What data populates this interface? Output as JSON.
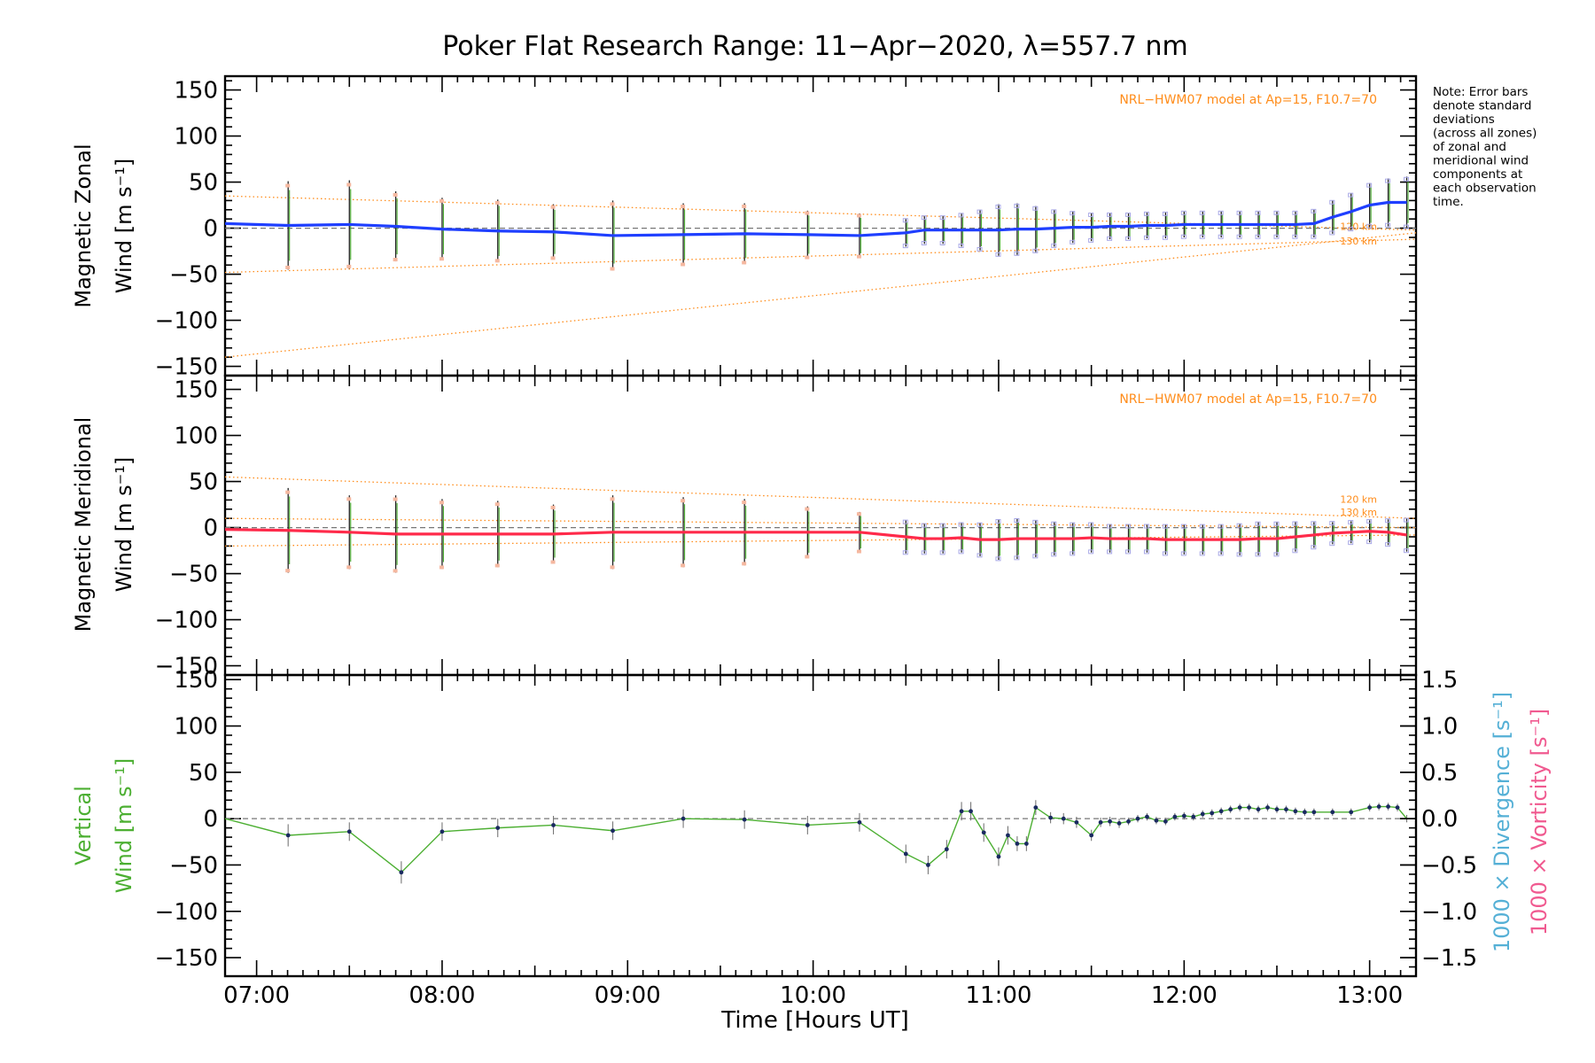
{
  "title": "Poker Flat Research Range: 11−Apr−2020, λ=557.7 nm",
  "note": [
    "Note: Error bars",
    "denote standard",
    "deviations",
    "(across all zones)",
    "of zonal and",
    "meridional wind",
    "components at",
    "each observation",
    "time."
  ],
  "xlabel": "Time [Hours UT]",
  "colors": {
    "zonal": "#1f3fff",
    "meridional": "#ff2a4a",
    "vertical": "#4caf32",
    "model": "#ff8c1a",
    "divergence": "#55b0d6",
    "vorticity": "#f05a90"
  },
  "chart_data": [
    {
      "type": "line",
      "name": "zonal",
      "ylabel_line1": "Magnetic Zonal",
      "ylabel_line2": "Wind [m s⁻¹]",
      "model_label": "NRL−HWM07 model at Ap=15, F10.7=70",
      "alt_labels": [
        "120 km",
        "130 km"
      ],
      "ylim": [
        -160,
        165
      ],
      "yticks": [
        "150",
        "100",
        "50",
        "0",
        "−50",
        "−100",
        "−150"
      ],
      "ytick_values": [
        150,
        100,
        50,
        0,
        -50,
        -100,
        -150
      ],
      "x": [
        6.83,
        7.17,
        7.5,
        7.75,
        8.0,
        8.3,
        8.6,
        8.92,
        9.3,
        9.63,
        9.97,
        10.25,
        10.5,
        10.6,
        10.7,
        10.8,
        10.9,
        11.0,
        11.1,
        11.2,
        11.3,
        11.4,
        11.5,
        11.6,
        11.7,
        11.8,
        11.9,
        12.0,
        12.1,
        12.2,
        12.3,
        12.4,
        12.5,
        12.6,
        12.7,
        12.8,
        12.9,
        13.0,
        13.1,
        13.2
      ],
      "y": [
        5,
        3,
        4,
        2,
        -1,
        -3,
        -4,
        -8,
        -7,
        -6,
        -7,
        -8,
        -5,
        -2,
        -2,
        -2,
        -2,
        -2,
        -1,
        -1,
        0,
        1,
        1,
        2,
        2,
        3,
        3,
        4,
        4,
        4,
        4,
        4,
        4,
        4,
        5,
        12,
        18,
        25,
        28,
        28
      ],
      "err": [
        0,
        48,
        48,
        38,
        34,
        34,
        30,
        38,
        34,
        33,
        26,
        24,
        15,
        15,
        15,
        18,
        22,
        28,
        28,
        25,
        20,
        17,
        15,
        14,
        14,
        14,
        14,
        14,
        14,
        14,
        14,
        14,
        14,
        14,
        15,
        18,
        20,
        24,
        26,
        28
      ],
      "model_curves": [
        {
          "x": [
            6.83,
            13.25
          ],
          "y": [
            -140,
            -5
          ]
        },
        {
          "x": [
            6.83,
            13.25
          ],
          "y": [
            -48,
            -12
          ]
        },
        {
          "x": [
            6.83,
            13.25
          ],
          "y": [
            35,
            -2
          ]
        }
      ]
    },
    {
      "type": "line",
      "name": "meridional",
      "ylabel_line1": "Magnetic Meridional",
      "ylabel_line2": "Wind [m s⁻¹]",
      "model_label": "NRL−HWM07 model at Ap=15, F10.7=70",
      "alt_labels": [
        "120 km",
        "130 km"
      ],
      "ylim": [
        -160,
        165
      ],
      "yticks": [
        "150",
        "100",
        "50",
        "0",
        "−50",
        "−100",
        "−150"
      ],
      "ytick_values": [
        150,
        100,
        50,
        0,
        -50,
        -100,
        -150
      ],
      "x": [
        6.83,
        7.17,
        7.5,
        7.75,
        8.0,
        8.3,
        8.6,
        8.92,
        9.3,
        9.63,
        9.97,
        10.25,
        10.5,
        10.6,
        10.7,
        10.8,
        10.9,
        11.0,
        11.1,
        11.2,
        11.3,
        11.4,
        11.5,
        11.6,
        11.7,
        11.8,
        11.9,
        12.0,
        12.1,
        12.2,
        12.3,
        12.4,
        12.5,
        12.6,
        12.7,
        12.8,
        12.9,
        13.0,
        13.1,
        13.2
      ],
      "y": [
        -2,
        -3,
        -5,
        -7,
        -7,
        -7,
        -7,
        -5,
        -5,
        -5,
        -5,
        -5,
        -10,
        -12,
        -12,
        -11,
        -13,
        -13,
        -12,
        -12,
        -12,
        -12,
        -11,
        -12,
        -12,
        -12,
        -13,
        -13,
        -13,
        -13,
        -13,
        -12,
        -12,
        -10,
        -8,
        -6,
        -5,
        -4,
        -5,
        -8
      ],
      "err": [
        0,
        46,
        40,
        42,
        38,
        36,
        32,
        40,
        38,
        36,
        28,
        22,
        18,
        16,
        16,
        16,
        18,
        22,
        22,
        20,
        18,
        17,
        16,
        15,
        15,
        15,
        16,
        16,
        16,
        16,
        17,
        18,
        18,
        16,
        14,
        12,
        12,
        12,
        14,
        18
      ],
      "model_curves": [
        {
          "x": [
            6.83,
            13.25
          ],
          "y": [
            55,
            10
          ]
        },
        {
          "x": [
            6.83,
            13.25
          ],
          "y": [
            10,
            0
          ]
        },
        {
          "x": [
            6.83,
            13.25
          ],
          "y": [
            -20,
            -8
          ]
        }
      ]
    },
    {
      "type": "line",
      "name": "vertical",
      "ylabel_line1": "Vertical",
      "ylabel_line2": "Wind [m s⁻¹]",
      "ylim": [
        -170,
        155
      ],
      "yticks": [
        "150",
        "100",
        "50",
        "0",
        "−50",
        "−100",
        "−150"
      ],
      "ytick_values": [
        150,
        100,
        50,
        0,
        -50,
        -100,
        -150
      ],
      "right_ylabel_div": "1000 × Divergence [s⁻¹]",
      "right_ylabel_vor": "1000 × Vorticity [s⁻¹]",
      "right_ylim": [
        -1.7,
        1.55
      ],
      "right_yticks": [
        "1.5",
        "1.0",
        "0.5",
        "0.0",
        "−0.5",
        "−1.0",
        "−1.5"
      ],
      "right_ytick_values": [
        1.5,
        1.0,
        0.5,
        0.0,
        -0.5,
        -1.0,
        -1.5
      ],
      "x": [
        6.83,
        7.17,
        7.5,
        7.78,
        8.0,
        8.3,
        8.6,
        8.92,
        9.3,
        9.63,
        9.97,
        10.25,
        10.5,
        10.62,
        10.72,
        10.8,
        10.85,
        10.92,
        11.0,
        11.05,
        11.1,
        11.15,
        11.2,
        11.28,
        11.35,
        11.42,
        11.5,
        11.55,
        11.6,
        11.65,
        11.7,
        11.75,
        11.8,
        11.85,
        11.9,
        11.95,
        12.0,
        12.05,
        12.1,
        12.15,
        12.2,
        12.25,
        12.3,
        12.35,
        12.4,
        12.45,
        12.5,
        12.55,
        12.6,
        12.65,
        12.7,
        12.8,
        12.9,
        13.0,
        13.05,
        13.1,
        13.15,
        13.2
      ],
      "y": [
        0,
        -18,
        -14,
        -58,
        -14,
        -10,
        -7,
        -13,
        0,
        -1,
        -7,
        -4,
        -38,
        -50,
        -33,
        8,
        8,
        -15,
        -41,
        -18,
        -27,
        -27,
        12,
        1,
        0,
        -4,
        -18,
        -4,
        -3,
        -5,
        -3,
        0,
        2,
        -2,
        -3,
        2,
        3,
        2,
        5,
        6,
        8,
        10,
        12,
        12,
        10,
        12,
        10,
        10,
        8,
        7,
        7,
        7,
        7,
        12,
        13,
        13,
        12,
        0
      ],
      "err": [
        0,
        12,
        10,
        12,
        10,
        10,
        10,
        10,
        10,
        10,
        10,
        10,
        10,
        10,
        10,
        10,
        10,
        10,
        10,
        10,
        8,
        8,
        8,
        6,
        6,
        6,
        6,
        5,
        5,
        5,
        4,
        4,
        4,
        4,
        4,
        4,
        4,
        4,
        4,
        4,
        4,
        4,
        4,
        4,
        4,
        4,
        4,
        4,
        4,
        4,
        4,
        4,
        4,
        4,
        4,
        4,
        4,
        4
      ]
    }
  ],
  "xticks": [
    "07:00",
    "08:00",
    "09:00",
    "10:00",
    "11:00",
    "12:00",
    "13:00"
  ],
  "xtick_values": [
    7,
    8,
    9,
    10,
    11,
    12,
    13
  ],
  "xlim": [
    6.83,
    13.25
  ]
}
